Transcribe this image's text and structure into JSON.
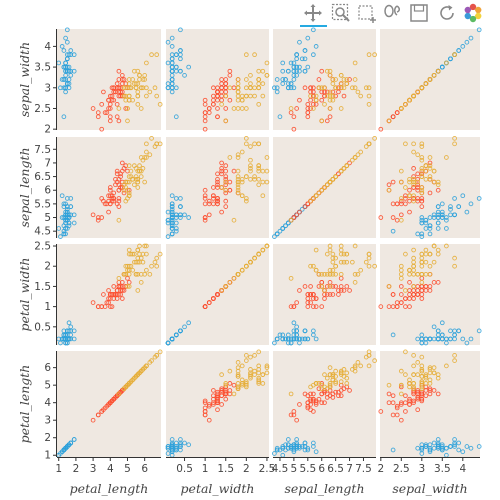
{
  "toolbar": {
    "tools": [
      {
        "name": "pan-tool",
        "icon": "pan-icon",
        "active": true
      },
      {
        "name": "zoom-tool",
        "icon": "box-zoom-icon",
        "active": false
      },
      {
        "name": "select-tool",
        "icon": "box-select-icon",
        "active": false
      },
      {
        "name": "lasso-tool",
        "icon": "lasso-icon",
        "active": false
      },
      {
        "name": "save-tool",
        "icon": "save-icon",
        "active": false
      },
      {
        "name": "reset-tool",
        "icon": "reset-icon",
        "active": false
      },
      {
        "name": "bokeh-logo",
        "icon": "bokeh-logo-icon",
        "active": false
      }
    ],
    "accent": "#26aae1"
  },
  "colors": {
    "panel_bg": "#efe8e1",
    "setosa": "#30a2da",
    "versicolor": "#fc4f30",
    "virginica": "#e5ae38"
  },
  "chart_data": {
    "type": "scatter",
    "subtype": "scatter_matrix",
    "grid": false,
    "variables": [
      "petal_length",
      "petal_width",
      "sepal_length",
      "sepal_width"
    ],
    "columns": [
      "petal_length",
      "petal_width",
      "sepal_length",
      "sepal_width"
    ],
    "rows": [
      "sepal_width",
      "sepal_length",
      "petal_width",
      "petal_length"
    ],
    "ranges": {
      "petal_length": [
        0.9,
        6.95
      ],
      "petal_width": [
        0.05,
        2.55
      ],
      "sepal_length": [
        4.25,
        7.95
      ],
      "sepal_width": [
        1.98,
        4.42
      ]
    },
    "ticks": {
      "petal_length": [
        "1",
        "2",
        "3",
        "4",
        "5",
        "6"
      ],
      "petal_width": [
        "0.5",
        "1",
        "1.5",
        "2",
        "2.5"
      ],
      "sepal_length": [
        "4.5",
        "5",
        "5.5",
        "6",
        "6.5",
        "7",
        "7.5"
      ],
      "sepal_width": [
        "2",
        "2.5",
        "3",
        "3.5",
        "4"
      ]
    },
    "row_ticks": {
      "sepal_width": [
        "2",
        "2.5",
        "3",
        "3.5",
        "4"
      ],
      "sepal_length": [
        "4.5",
        "5",
        "5.5",
        "6",
        "6.5",
        "7",
        "7.5"
      ],
      "petal_width": [
        "0.5",
        "1",
        "1.5",
        "2",
        "2.5"
      ],
      "petal_length": [
        "1",
        "2",
        "3",
        "4",
        "5",
        "6"
      ]
    },
    "x_axis_labels": [
      "petal_length",
      "petal_width",
      "sepal_length",
      "sepal_width"
    ],
    "y_axis_labels": [
      "sepal_width",
      "sepal_length",
      "petal_width",
      "petal_length"
    ],
    "series": [
      {
        "color": "#30a2da",
        "points": [
          [
            5.1,
            3.5,
            1.4,
            0.2
          ],
          [
            4.9,
            3.0,
            1.4,
            0.2
          ],
          [
            4.7,
            3.2,
            1.3,
            0.2
          ],
          [
            4.6,
            3.1,
            1.5,
            0.2
          ],
          [
            5.0,
            3.6,
            1.4,
            0.2
          ],
          [
            5.4,
            3.9,
            1.7,
            0.4
          ],
          [
            4.6,
            3.4,
            1.4,
            0.3
          ],
          [
            5.0,
            3.4,
            1.5,
            0.2
          ],
          [
            4.4,
            2.9,
            1.4,
            0.2
          ],
          [
            4.9,
            3.1,
            1.5,
            0.1
          ],
          [
            5.4,
            3.7,
            1.5,
            0.2
          ],
          [
            4.8,
            3.4,
            1.6,
            0.2
          ],
          [
            4.8,
            3.0,
            1.4,
            0.1
          ],
          [
            4.3,
            3.0,
            1.1,
            0.1
          ],
          [
            5.8,
            4.0,
            1.2,
            0.2
          ],
          [
            5.7,
            4.4,
            1.5,
            0.4
          ],
          [
            5.4,
            3.9,
            1.3,
            0.4
          ],
          [
            5.1,
            3.5,
            1.4,
            0.3
          ],
          [
            5.7,
            3.8,
            1.7,
            0.3
          ],
          [
            5.1,
            3.8,
            1.5,
            0.3
          ],
          [
            5.4,
            3.4,
            1.7,
            0.2
          ],
          [
            5.1,
            3.7,
            1.5,
            0.4
          ],
          [
            4.6,
            3.6,
            1.0,
            0.2
          ],
          [
            5.1,
            3.3,
            1.7,
            0.5
          ],
          [
            4.8,
            3.4,
            1.9,
            0.2
          ],
          [
            5.0,
            3.0,
            1.6,
            0.2
          ],
          [
            5.0,
            3.4,
            1.6,
            0.4
          ],
          [
            5.2,
            3.5,
            1.5,
            0.2
          ],
          [
            5.2,
            3.4,
            1.4,
            0.2
          ],
          [
            4.7,
            3.2,
            1.6,
            0.2
          ],
          [
            4.8,
            3.1,
            1.6,
            0.2
          ],
          [
            5.4,
            3.4,
            1.5,
            0.4
          ],
          [
            5.2,
            4.1,
            1.5,
            0.1
          ],
          [
            5.5,
            4.2,
            1.4,
            0.2
          ],
          [
            4.9,
            3.1,
            1.5,
            0.2
          ],
          [
            5.0,
            3.2,
            1.2,
            0.2
          ],
          [
            5.5,
            3.5,
            1.3,
            0.2
          ],
          [
            4.9,
            3.6,
            1.4,
            0.1
          ],
          [
            4.4,
            3.0,
            1.3,
            0.2
          ],
          [
            5.1,
            3.4,
            1.5,
            0.2
          ],
          [
            5.0,
            3.5,
            1.3,
            0.3
          ],
          [
            4.5,
            2.3,
            1.3,
            0.3
          ],
          [
            4.4,
            3.2,
            1.3,
            0.2
          ],
          [
            5.0,
            3.5,
            1.6,
            0.6
          ],
          [
            5.1,
            3.8,
            1.9,
            0.4
          ],
          [
            4.8,
            3.0,
            1.4,
            0.3
          ],
          [
            5.1,
            3.8,
            1.6,
            0.2
          ],
          [
            4.6,
            3.2,
            1.4,
            0.2
          ],
          [
            5.3,
            3.7,
            1.5,
            0.2
          ],
          [
            5.0,
            3.3,
            1.4,
            0.2
          ]
        ]
      },
      {
        "color": "#fc4f30",
        "points": [
          [
            7.0,
            3.2,
            4.7,
            1.4
          ],
          [
            6.4,
            3.2,
            4.5,
            1.5
          ],
          [
            6.9,
            3.1,
            4.9,
            1.5
          ],
          [
            5.5,
            2.3,
            4.0,
            1.3
          ],
          [
            6.5,
            2.8,
            4.6,
            1.5
          ],
          [
            5.7,
            2.8,
            4.5,
            1.3
          ],
          [
            6.3,
            3.3,
            4.7,
            1.6
          ],
          [
            4.9,
            2.4,
            3.3,
            1.0
          ],
          [
            6.6,
            2.9,
            4.6,
            1.3
          ],
          [
            5.2,
            2.7,
            3.9,
            1.4
          ],
          [
            5.0,
            2.0,
            3.5,
            1.0
          ],
          [
            5.9,
            3.0,
            4.2,
            1.5
          ],
          [
            6.0,
            2.2,
            4.0,
            1.0
          ],
          [
            6.1,
            2.9,
            4.7,
            1.4
          ],
          [
            5.6,
            2.9,
            3.6,
            1.3
          ],
          [
            6.7,
            3.1,
            4.4,
            1.4
          ],
          [
            5.6,
            3.0,
            4.5,
            1.5
          ],
          [
            5.8,
            2.7,
            4.1,
            1.0
          ],
          [
            6.2,
            2.2,
            4.5,
            1.5
          ],
          [
            5.6,
            2.5,
            3.9,
            1.1
          ],
          [
            5.9,
            3.2,
            4.8,
            1.8
          ],
          [
            6.1,
            2.8,
            4.0,
            1.3
          ],
          [
            6.3,
            2.5,
            4.9,
            1.5
          ],
          [
            6.1,
            2.8,
            4.7,
            1.2
          ],
          [
            6.4,
            2.9,
            4.3,
            1.3
          ],
          [
            6.6,
            3.0,
            4.4,
            1.4
          ],
          [
            6.8,
            2.8,
            4.8,
            1.4
          ],
          [
            6.7,
            3.0,
            5.0,
            1.7
          ],
          [
            6.0,
            2.9,
            4.5,
            1.5
          ],
          [
            5.7,
            2.6,
            3.5,
            1.0
          ],
          [
            5.5,
            2.4,
            3.8,
            1.1
          ],
          [
            5.5,
            2.4,
            3.7,
            1.0
          ],
          [
            5.8,
            2.7,
            3.9,
            1.2
          ],
          [
            6.0,
            2.7,
            5.1,
            1.6
          ],
          [
            5.4,
            3.0,
            4.5,
            1.5
          ],
          [
            6.0,
            3.4,
            4.5,
            1.6
          ],
          [
            6.7,
            3.1,
            4.7,
            1.5
          ],
          [
            6.3,
            2.3,
            4.4,
            1.3
          ],
          [
            5.6,
            3.0,
            4.1,
            1.3
          ],
          [
            5.5,
            2.5,
            4.0,
            1.3
          ],
          [
            5.5,
            2.6,
            4.4,
            1.2
          ],
          [
            6.1,
            3.0,
            4.6,
            1.4
          ],
          [
            5.8,
            2.6,
            4.0,
            1.2
          ],
          [
            5.0,
            2.3,
            3.3,
            1.0
          ],
          [
            5.6,
            2.7,
            4.2,
            1.3
          ],
          [
            5.7,
            3.0,
            4.2,
            1.2
          ],
          [
            5.7,
            2.9,
            4.2,
            1.3
          ],
          [
            6.2,
            2.9,
            4.3,
            1.3
          ],
          [
            5.1,
            2.5,
            3.0,
            1.1
          ],
          [
            5.7,
            2.8,
            4.1,
            1.3
          ]
        ]
      },
      {
        "color": "#e5ae38",
        "points": [
          [
            6.3,
            3.3,
            6.0,
            2.5
          ],
          [
            5.8,
            2.7,
            5.1,
            1.9
          ],
          [
            7.1,
            3.0,
            5.9,
            2.1
          ],
          [
            6.3,
            2.9,
            5.6,
            1.8
          ],
          [
            6.5,
            3.0,
            5.8,
            2.2
          ],
          [
            7.6,
            3.0,
            6.6,
            2.1
          ],
          [
            4.9,
            2.5,
            4.5,
            1.7
          ],
          [
            7.3,
            2.9,
            6.3,
            1.8
          ],
          [
            6.7,
            2.5,
            5.8,
            1.8
          ],
          [
            7.2,
            3.6,
            6.1,
            2.5
          ],
          [
            6.5,
            3.2,
            5.1,
            2.0
          ],
          [
            6.4,
            2.7,
            5.3,
            1.9
          ],
          [
            6.8,
            3.0,
            5.5,
            2.1
          ],
          [
            5.7,
            2.5,
            5.0,
            2.0
          ],
          [
            5.8,
            2.8,
            5.1,
            2.4
          ],
          [
            6.4,
            3.2,
            5.3,
            2.3
          ],
          [
            6.5,
            3.0,
            5.5,
            1.8
          ],
          [
            7.7,
            3.8,
            6.7,
            2.2
          ],
          [
            7.7,
            2.6,
            6.9,
            2.3
          ],
          [
            6.0,
            2.2,
            5.0,
            1.5
          ],
          [
            6.9,
            3.2,
            5.7,
            2.3
          ],
          [
            5.6,
            2.8,
            4.9,
            2.0
          ],
          [
            7.7,
            2.8,
            6.7,
            2.0
          ],
          [
            6.3,
            2.7,
            4.9,
            1.8
          ],
          [
            6.7,
            3.3,
            5.7,
            2.1
          ],
          [
            7.2,
            3.2,
            6.0,
            1.8
          ],
          [
            6.2,
            2.8,
            4.8,
            1.8
          ],
          [
            6.1,
            3.0,
            4.9,
            1.8
          ],
          [
            6.4,
            2.8,
            5.6,
            2.1
          ],
          [
            7.2,
            3.0,
            5.8,
            1.6
          ],
          [
            7.4,
            2.8,
            6.1,
            1.9
          ],
          [
            7.9,
            3.8,
            6.4,
            2.0
          ],
          [
            6.4,
            2.8,
            5.6,
            2.2
          ],
          [
            6.3,
            2.8,
            5.1,
            1.5
          ],
          [
            6.1,
            2.6,
            5.6,
            1.4
          ],
          [
            7.7,
            3.0,
            6.1,
            2.3
          ],
          [
            6.3,
            3.4,
            5.6,
            2.4
          ],
          [
            6.4,
            3.1,
            5.5,
            1.8
          ],
          [
            6.0,
            3.0,
            4.8,
            1.8
          ],
          [
            6.9,
            3.1,
            5.4,
            2.1
          ],
          [
            6.7,
            3.1,
            5.6,
            2.4
          ],
          [
            6.9,
            3.1,
            5.1,
            2.3
          ],
          [
            5.8,
            2.7,
            5.1,
            1.9
          ],
          [
            6.8,
            3.2,
            5.9,
            2.3
          ],
          [
            6.7,
            3.3,
            5.7,
            2.5
          ],
          [
            6.7,
            3.0,
            5.2,
            2.3
          ],
          [
            6.3,
            2.5,
            5.0,
            1.9
          ],
          [
            6.5,
            3.0,
            5.2,
            2.0
          ],
          [
            6.2,
            3.4,
            5.4,
            2.3
          ],
          [
            5.9,
            3.0,
            5.1,
            1.8
          ]
        ]
      }
    ],
    "point_fields": [
      "sepal_length",
      "sepal_width",
      "petal_length",
      "petal_width"
    ]
  }
}
